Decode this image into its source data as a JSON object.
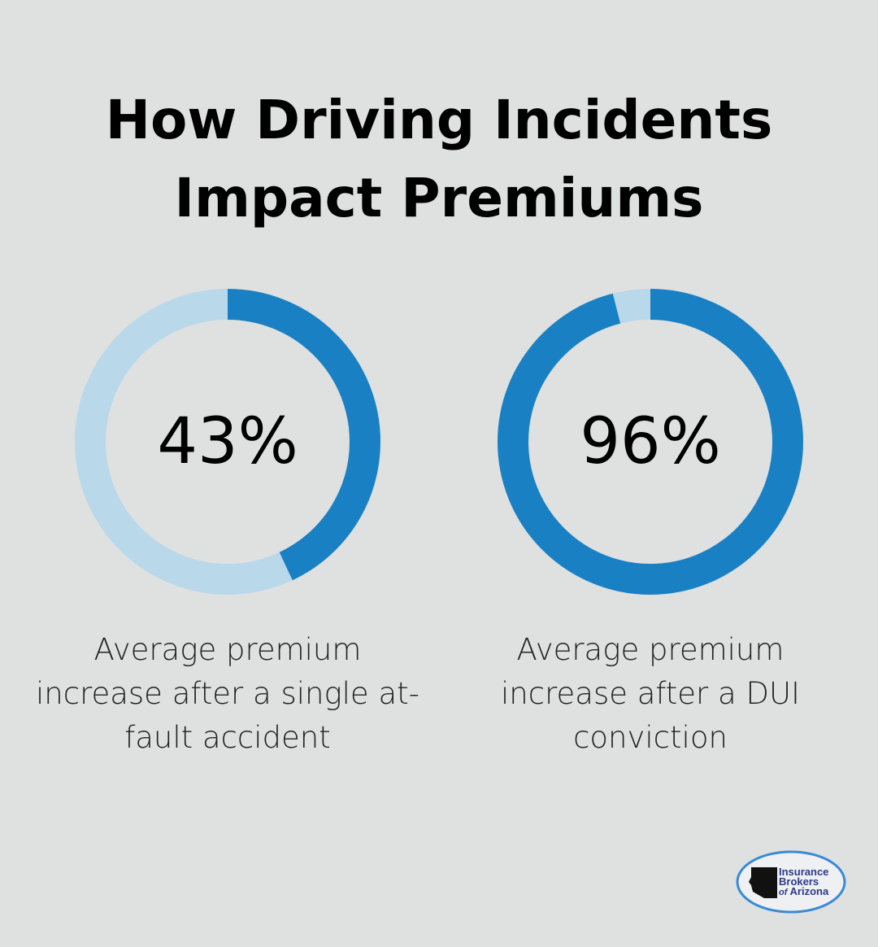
{
  "title_line1": "How Driving Incidents",
  "title_line2": "Impact Premiums",
  "colors": {
    "background": "#dfe1e0",
    "filled": "#1a80c4",
    "remainder": "#b9d8ea"
  },
  "chart_data": [
    {
      "type": "pie",
      "style": "donut",
      "value": 43,
      "label": "43%",
      "caption": "Average premium increase after a single at-fault accident"
    },
    {
      "type": "pie",
      "style": "donut",
      "value": 96,
      "label": "96%",
      "caption": "Average premium increase after a DUI conviction"
    }
  ],
  "logo": {
    "line1": "Insurance",
    "line2": "Brokers",
    "line3": "of Arizona"
  }
}
